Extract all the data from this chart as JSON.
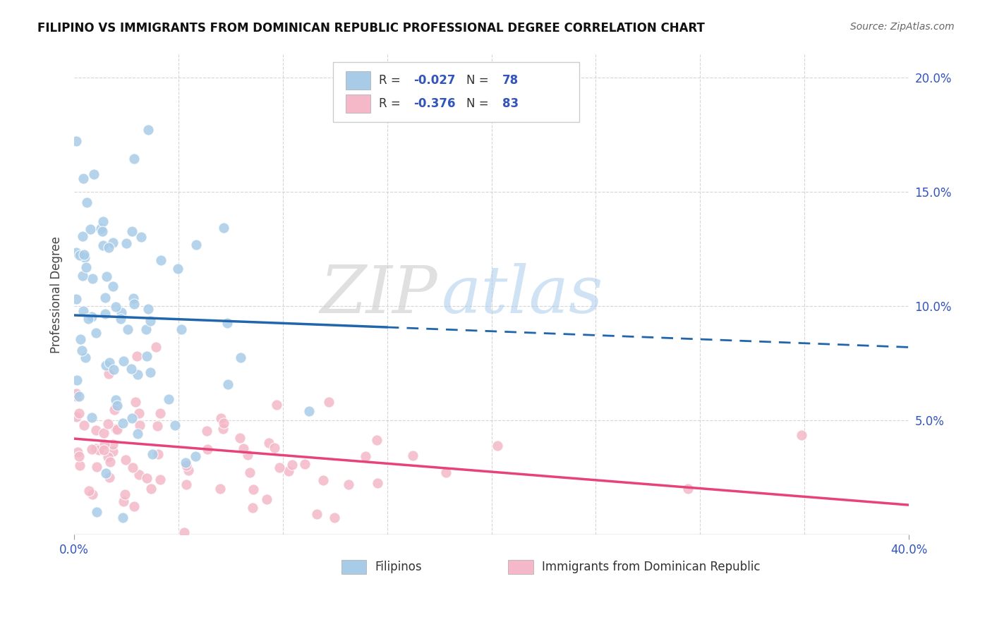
{
  "title": "FILIPINO VS IMMIGRANTS FROM DOMINICAN REPUBLIC PROFESSIONAL DEGREE CORRELATION CHART",
  "source": "Source: ZipAtlas.com",
  "ylabel": "Professional Degree",
  "blue_R": -0.027,
  "blue_N": 78,
  "pink_R": -0.376,
  "pink_N": 83,
  "blue_color": "#a8cce8",
  "pink_color": "#f4b8c8",
  "blue_line_color": "#2166ac",
  "pink_line_color": "#e8427a",
  "legend_label_blue": "Filipinos",
  "legend_label_pink": "Immigrants from Dominican Republic",
  "xlim": [
    0.0,
    0.4
  ],
  "ylim": [
    0.0,
    0.21
  ],
  "watermark_zip": "ZIP",
  "watermark_atlas": "atlas",
  "background_color": "#ffffff",
  "grid_color": "#cccccc",
  "blue_line_solid_end": 0.15,
  "blue_line_y0": 0.096,
  "blue_line_y1": 0.082,
  "pink_line_y0": 0.042,
  "pink_line_y1": 0.013,
  "title_fontsize": 12,
  "source_fontsize": 10,
  "tick_color": "#3355bb"
}
